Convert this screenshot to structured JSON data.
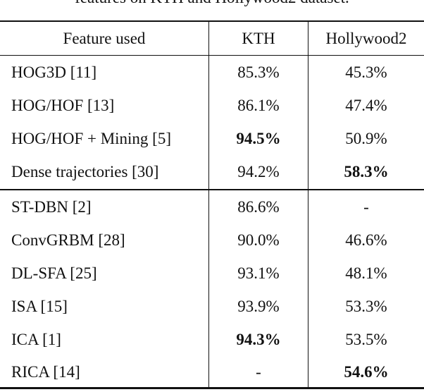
{
  "caption": "features on KTH and Hollywood2 dataset.",
  "headers": [
    "Feature used",
    "KTH",
    "Hollywood2"
  ],
  "groups": [
    [
      {
        "feature": "HOG3D [11]",
        "kth": "85.3%",
        "hollywood2": "45.3%",
        "kth_bold": false,
        "hollywood2_bold": false
      },
      {
        "feature": "HOG/HOF [13]",
        "kth": "86.1%",
        "hollywood2": "47.4%",
        "kth_bold": false,
        "hollywood2_bold": false
      },
      {
        "feature": "HOG/HOF + Mining [5]",
        "kth": "94.5%",
        "hollywood2": "50.9%",
        "kth_bold": true,
        "hollywood2_bold": false
      },
      {
        "feature": "Dense trajectories [30]",
        "kth": "94.2%",
        "hollywood2": "58.3%",
        "kth_bold": false,
        "hollywood2_bold": true
      }
    ],
    [
      {
        "feature": "ST-DBN [2]",
        "kth": "86.6%",
        "hollywood2": "-",
        "kth_bold": false,
        "hollywood2_bold": false
      },
      {
        "feature": "ConvGRBM [28]",
        "kth": "90.0%",
        "hollywood2": "46.6%",
        "kth_bold": false,
        "hollywood2_bold": false
      },
      {
        "feature": "DL-SFA [25]",
        "kth": "93.1%",
        "hollywood2": "48.1%",
        "kth_bold": false,
        "hollywood2_bold": false
      },
      {
        "feature": "ISA [15]",
        "kth": "93.9%",
        "hollywood2": "53.3%",
        "kth_bold": false,
        "hollywood2_bold": false
      },
      {
        "feature": "ICA [1]",
        "kth": "94.3%",
        "hollywood2": "53.5%",
        "kth_bold": true,
        "hollywood2_bold": false
      },
      {
        "feature": "RICA [14]",
        "kth": "-",
        "hollywood2": "54.6%",
        "kth_bold": false,
        "hollywood2_bold": true
      }
    ]
  ]
}
